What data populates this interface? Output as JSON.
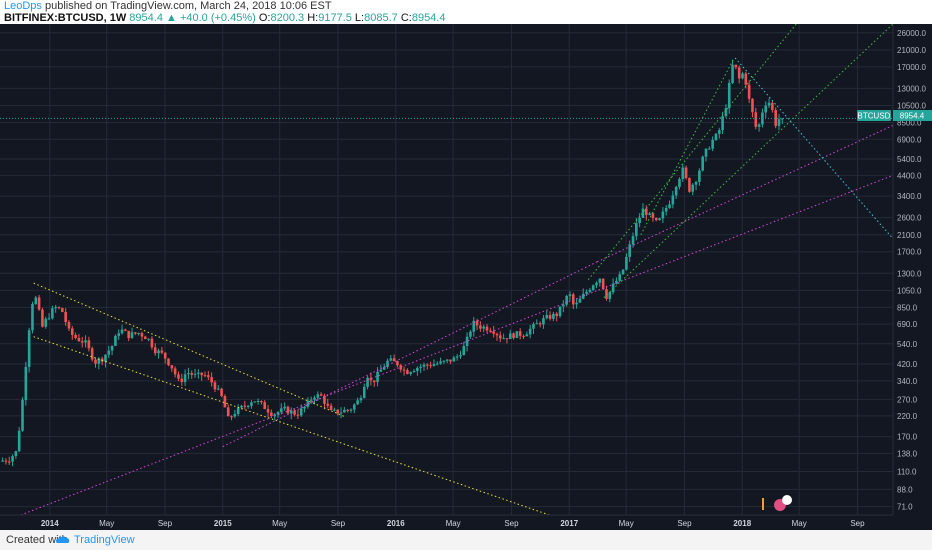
{
  "header": {
    "author": "LeoDps",
    "published_text": "published on TradingView.com, March 24, 2018 10:06 EST",
    "symbol": "BITFINEX:BTCUSD, 1W",
    "last": "8954.4",
    "change": "▲ +40.0 (+0.45%)",
    "open_label": "O:",
    "open": "8200.3",
    "high_label": "H:",
    "high": "9177.5",
    "low_label": "L:",
    "low": "8085.7",
    "close_label": "C:",
    "close": "8954.4"
  },
  "footer": {
    "created_with": "Created with",
    "brand": "TradingView"
  },
  "colors": {
    "background": "#131722",
    "grid": "#242a38",
    "up": "#26a69a",
    "down": "#ef5350",
    "text": "#b2b5be",
    "last_price": "#26a69a",
    "yellow_channel": "#e6e62e",
    "magenta_channel": "#d64ad6",
    "green_channel": "#3fbf3f",
    "cyan_line": "#3fc7d6"
  },
  "chart_data": {
    "type": "candlestick",
    "symbol_label": "BTCUSD",
    "last_price_label": "8954.4",
    "y_scale": "log",
    "ylim": [
      64,
      29000
    ],
    "xlim": [
      "2013-09-18",
      "2018-11-15"
    ],
    "y_ticks": [
      26000,
      21000,
      17000,
      13000,
      10500,
      8500,
      6900,
      5400,
      4400,
      3400,
      2600,
      2100,
      1700,
      1300,
      1050,
      850,
      690,
      540,
      420,
      340,
      270,
      220,
      170,
      138,
      110,
      88,
      71
    ],
    "y_tick_labels": [
      "26000.0",
      "21000.0",
      "17000.0",
      "13000.0",
      "10500.0",
      "8500.0",
      "6900.0",
      "5400.0",
      "4400.0",
      "3400.0",
      "2600.0",
      "2100.0",
      "1700.0",
      "1300.0",
      "1050.0",
      "850.0",
      "690.0",
      "540.0",
      "420.0",
      "340.0",
      "270.0",
      "220.0",
      "170.0",
      "138.0",
      "110.0",
      "88.0",
      "71.0"
    ],
    "x_ticks": [
      {
        "date": "2014-01-01",
        "label": "2014",
        "bold": true
      },
      {
        "date": "2014-05-01",
        "label": "May",
        "bold": false
      },
      {
        "date": "2014-09-01",
        "label": "Sep",
        "bold": false
      },
      {
        "date": "2015-01-01",
        "label": "2015",
        "bold": true
      },
      {
        "date": "2015-05-01",
        "label": "May",
        "bold": false
      },
      {
        "date": "2015-09-01",
        "label": "Sep",
        "bold": false
      },
      {
        "date": "2016-01-01",
        "label": "2016",
        "bold": true
      },
      {
        "date": "2016-05-01",
        "label": "May",
        "bold": false
      },
      {
        "date": "2016-09-01",
        "label": "Sep",
        "bold": false
      },
      {
        "date": "2017-01-01",
        "label": "2017",
        "bold": true
      },
      {
        "date": "2017-05-01",
        "label": "May",
        "bold": false
      },
      {
        "date": "2017-09-01",
        "label": "Sep",
        "bold": false
      },
      {
        "date": "2018-01-01",
        "label": "2018",
        "bold": true
      },
      {
        "date": "2018-05-01",
        "label": "May",
        "bold": false
      },
      {
        "date": "2018-09-01",
        "label": "Sep",
        "bold": false
      }
    ],
    "last_price": 8954.4,
    "price_path": [
      [
        "2013-09-20",
        125
      ],
      [
        "2013-10-10",
        128
      ],
      [
        "2013-10-25",
        140
      ],
      [
        "2013-11-05",
        220
      ],
      [
        "2013-11-15",
        420
      ],
      [
        "2013-11-25",
        800
      ],
      [
        "2013-12-02",
        1000
      ],
      [
        "2013-12-10",
        900
      ],
      [
        "2013-12-18",
        650
      ],
      [
        "2013-12-28",
        730
      ],
      [
        "2014-01-15",
        850
      ],
      [
        "2014-01-30",
        820
      ],
      [
        "2014-02-15",
        620
      ],
      [
        "2014-03-01",
        580
      ],
      [
        "2014-03-20",
        550
      ],
      [
        "2014-04-10",
        430
      ],
      [
        "2014-04-25",
        450
      ],
      [
        "2014-05-15",
        520
      ],
      [
        "2014-06-01",
        650
      ],
      [
        "2014-06-20",
        600
      ],
      [
        "2014-07-10",
        620
      ],
      [
        "2014-07-30",
        580
      ],
      [
        "2014-08-15",
        500
      ],
      [
        "2014-09-01",
        470
      ],
      [
        "2014-09-20",
        400
      ],
      [
        "2014-10-05",
        330
      ],
      [
        "2014-10-20",
        380
      ],
      [
        "2014-11-10",
        360
      ],
      [
        "2014-11-25",
        370
      ],
      [
        "2014-12-15",
        330
      ],
      [
        "2015-01-05",
        270
      ],
      [
        "2015-01-15",
        210
      ],
      [
        "2015-01-30",
        230
      ],
      [
        "2015-02-15",
        245
      ],
      [
        "2015-03-10",
        270
      ],
      [
        "2015-03-30",
        250
      ],
      [
        "2015-04-20",
        225
      ],
      [
        "2015-05-15",
        238
      ],
      [
        "2015-06-10",
        225
      ],
      [
        "2015-06-30",
        250
      ],
      [
        "2015-07-15",
        285
      ],
      [
        "2015-08-01",
        280
      ],
      [
        "2015-08-20",
        230
      ],
      [
        "2015-09-10",
        232
      ],
      [
        "2015-10-01",
        240
      ],
      [
        "2015-10-20",
        270
      ],
      [
        "2015-11-05",
        370
      ],
      [
        "2015-11-15",
        330
      ],
      [
        "2015-12-01",
        380
      ],
      [
        "2015-12-20",
        440
      ],
      [
        "2016-01-10",
        420
      ],
      [
        "2016-01-25",
        380
      ],
      [
        "2016-02-15",
        400
      ],
      [
        "2016-03-10",
        415
      ],
      [
        "2016-04-10",
        425
      ],
      [
        "2016-05-10",
        450
      ],
      [
        "2016-05-30",
        530
      ],
      [
        "2016-06-15",
        700
      ],
      [
        "2016-07-01",
        670
      ],
      [
        "2016-07-25",
        650
      ],
      [
        "2016-08-15",
        580
      ],
      [
        "2016-09-10",
        605
      ],
      [
        "2016-10-01",
        612
      ],
      [
        "2016-10-25",
        680
      ],
      [
        "2016-11-15",
        740
      ],
      [
        "2016-12-10",
        780
      ],
      [
        "2016-12-30",
        960
      ],
      [
        "2017-01-05",
        1000
      ],
      [
        "2017-01-15",
        850
      ],
      [
        "2017-02-01",
        970
      ],
      [
        "2017-02-25",
        1150
      ],
      [
        "2017-03-10",
        1230
      ],
      [
        "2017-03-25",
        960
      ],
      [
        "2017-04-10",
        1150
      ],
      [
        "2017-04-25",
        1280
      ],
      [
        "2017-05-10",
        1750
      ],
      [
        "2017-05-25",
        2350
      ],
      [
        "2017-06-10",
        2900
      ],
      [
        "2017-06-25",
        2600
      ],
      [
        "2017-07-10",
        2400
      ],
      [
        "2017-07-20",
        2700
      ],
      [
        "2017-08-05",
        3200
      ],
      [
        "2017-08-20",
        4100
      ],
      [
        "2017-09-01",
        4700
      ],
      [
        "2017-09-15",
        3700
      ],
      [
        "2017-10-01",
        4300
      ],
      [
        "2017-10-15",
        5600
      ],
      [
        "2017-11-01",
        6700
      ],
      [
        "2017-11-15",
        7400
      ],
      [
        "2017-12-01",
        10500
      ],
      [
        "2017-12-17",
        18500
      ],
      [
        "2017-12-28",
        14500
      ],
      [
        "2018-01-08",
        16000
      ],
      [
        "2018-01-18",
        11500
      ],
      [
        "2018-02-05",
        7500
      ],
      [
        "2018-02-20",
        10800
      ],
      [
        "2018-03-05",
        11000
      ],
      [
        "2018-03-15",
        8300
      ],
      [
        "2018-03-24",
        8954.4
      ]
    ],
    "trendlines": [
      {
        "name": "yellow-channel-upper",
        "color": "#e6e62e",
        "from": [
          "2013-11-28",
          1150
        ],
        "to": [
          "2015-09-15",
          218
        ]
      },
      {
        "name": "yellow-channel-lower",
        "color": "#e6e62e",
        "from": [
          "2013-11-28",
          590
        ],
        "to": [
          "2016-11-20",
          64
        ]
      },
      {
        "name": "magenta-channel-upper",
        "color": "#d64ad6",
        "from": [
          "2015-01-01",
          150
        ],
        "to": [
          "2017-03-01",
          1500
        ]
      },
      {
        "name": "magenta-channel-lower",
        "color": "#d64ad6",
        "from": [
          "2013-11-01",
          64
        ],
        "to": [
          "2018-11-15",
          4400
        ]
      },
      {
        "name": "magenta-extension",
        "color": "#d64ad6",
        "from": [
          "2017-03-01",
          1500
        ],
        "to": [
          "2018-11-15",
          8200
        ]
      },
      {
        "name": "green-channel-upper",
        "color": "#3fbf3f",
        "from": [
          "2017-02-10",
          1200
        ],
        "to": [
          "2018-04-25",
          29000
        ]
      },
      {
        "name": "green-channel-lower",
        "color": "#3fbf3f",
        "from": [
          "2017-03-15",
          960
        ],
        "to": [
          "2018-11-15",
          29000
        ]
      },
      {
        "name": "green-channel-mid",
        "color": "#3fbf3f",
        "from": [
          "2017-06-01",
          2100
        ],
        "to": [
          "2017-12-15",
          19000
        ]
      },
      {
        "name": "cyan-downtrend",
        "color": "#3fc7d6",
        "from": [
          "2017-12-17",
          19000
        ],
        "to": [
          "2018-11-15",
          2000
        ]
      }
    ]
  }
}
